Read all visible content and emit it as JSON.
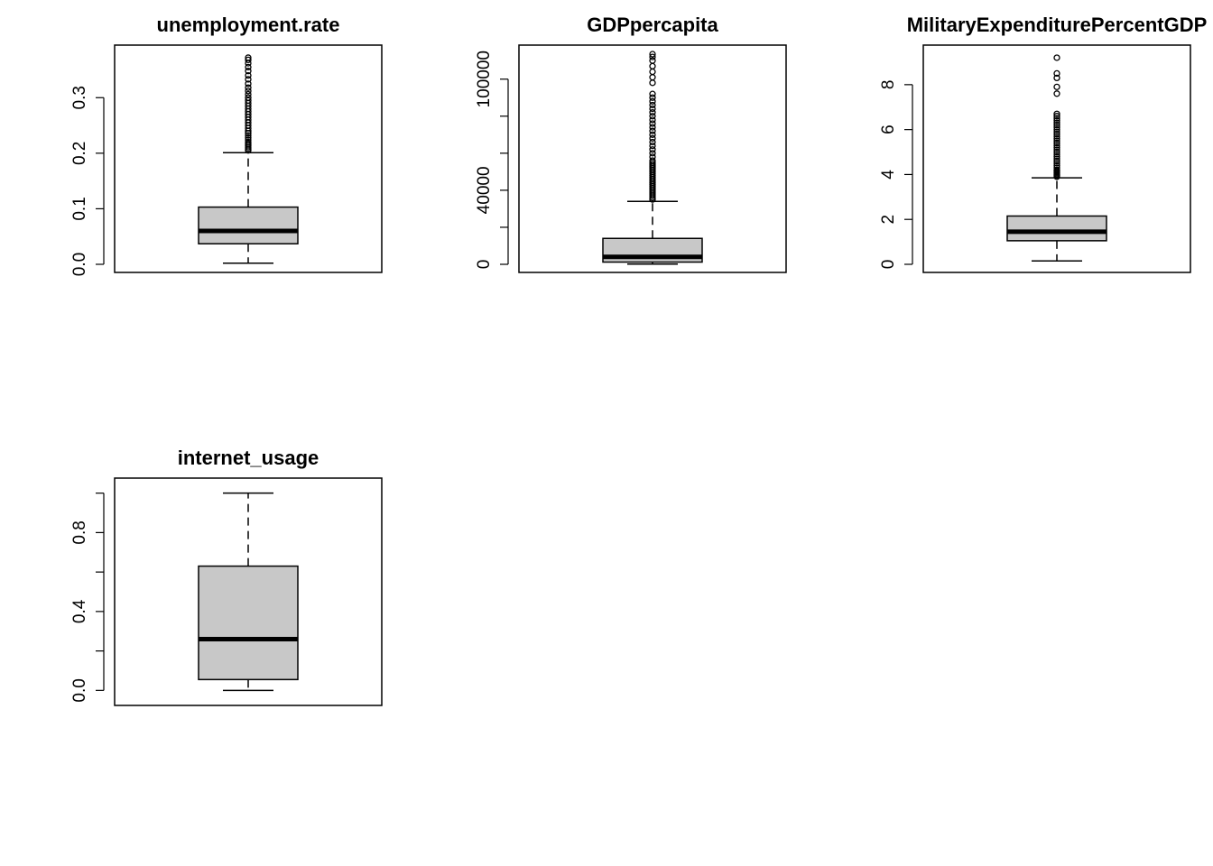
{
  "chart_data": [
    {
      "type": "boxplot",
      "title": "unemployment.rate",
      "ylim": [
        0.0,
        0.38
      ],
      "yticks": [
        0.0,
        0.1,
        0.2,
        0.3
      ],
      "ytick_labels": [
        "0.0",
        "0.1",
        "0.2",
        "0.3"
      ],
      "box": {
        "lower_whisker": 0.002,
        "q1": 0.037,
        "median": 0.06,
        "q3": 0.103,
        "upper_whisker": 0.201
      },
      "outliers": [
        0.205,
        0.208,
        0.211,
        0.214,
        0.217,
        0.22,
        0.224,
        0.228,
        0.232,
        0.236,
        0.24,
        0.245,
        0.25,
        0.255,
        0.26,
        0.265,
        0.27,
        0.275,
        0.28,
        0.285,
        0.29,
        0.295,
        0.3,
        0.306,
        0.312,
        0.318,
        0.325,
        0.333,
        0.34,
        0.348,
        0.355,
        0.362,
        0.368,
        0.372
      ]
    },
    {
      "type": "boxplot",
      "title": "GDPpercapita",
      "ylim": [
        0,
        114000
      ],
      "yticks": [
        0,
        20000,
        40000,
        60000,
        80000,
        100000
      ],
      "ytick_labels": [
        "0",
        "",
        "40000",
        "",
        "",
        "100000"
      ],
      "box": {
        "lower_whisker": 100,
        "q1": 1200,
        "median": 4000,
        "q3": 14000,
        "upper_whisker": 34000
      },
      "outliers": [
        35000,
        36000,
        37000,
        38000,
        39000,
        40000,
        41000,
        42000,
        43000,
        44000,
        45000,
        46000,
        47000,
        48000,
        49000,
        50000,
        51000,
        52000,
        53000,
        54000,
        55000,
        56000,
        58000,
        60000,
        62000,
        64000,
        66000,
        68000,
        70000,
        72000,
        74000,
        76000,
        78000,
        80000,
        82000,
        84000,
        86000,
        88000,
        90000,
        92000,
        98000,
        101000,
        104000,
        107000,
        110000,
        112000,
        113500
      ]
    },
    {
      "type": "boxplot",
      "title": "MilitaryExpenditurePercentGDP",
      "ylim": [
        0,
        9.4
      ],
      "yticks": [
        0,
        2,
        4,
        6,
        8
      ],
      "ytick_labels": [
        "0",
        "2",
        "4",
        "6",
        "8"
      ],
      "box": {
        "lower_whisker": 0.15,
        "q1": 1.05,
        "median": 1.45,
        "q3": 2.15,
        "upper_whisker": 3.85
      },
      "outliers": [
        3.9,
        3.95,
        4.0,
        4.05,
        4.1,
        4.15,
        4.2,
        4.3,
        4.4,
        4.5,
        4.6,
        4.7,
        4.8,
        4.9,
        5.0,
        5.1,
        5.2,
        5.3,
        5.4,
        5.5,
        5.6,
        5.7,
        5.8,
        5.9,
        6.0,
        6.1,
        6.2,
        6.3,
        6.4,
        6.5,
        6.6,
        6.7,
        7.6,
        7.9,
        8.3,
        8.5,
        9.2
      ]
    },
    {
      "type": "boxplot",
      "title": "internet_usage",
      "ylim": [
        -0.035,
        1.035
      ],
      "yticks": [
        0.0,
        0.2,
        0.4,
        0.6,
        0.8,
        1.0
      ],
      "ytick_labels": [
        "0.0",
        "",
        "0.4",
        "",
        "0.8",
        ""
      ],
      "box": {
        "lower_whisker": 0.0,
        "q1": 0.055,
        "median": 0.26,
        "q3": 0.63,
        "upper_whisker": 1.0
      },
      "outliers": []
    }
  ]
}
